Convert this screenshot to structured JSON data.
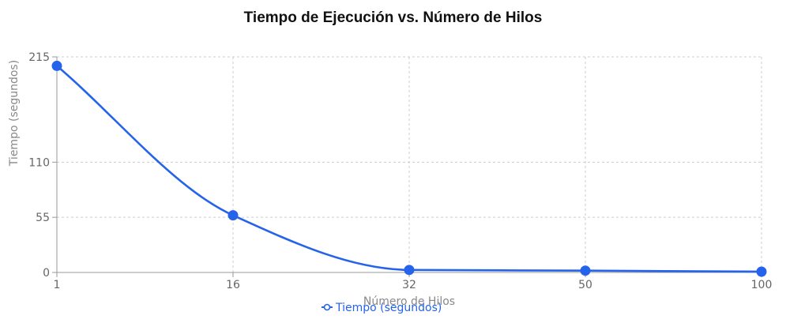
{
  "chart_data": {
    "type": "line",
    "title": "Tiempo de Ejecución vs. Número de Hilos",
    "xlabel": "Número de Hilos",
    "ylabel": "Tiempo (segundos)",
    "categories": [
      "1",
      "16",
      "32",
      "50",
      "100"
    ],
    "series": [
      {
        "name": "Tiempo (segundos)",
        "values": [
          206,
          57,
          2.5,
          1.8,
          0.8
        ],
        "color": "#2563eb"
      }
    ],
    "y_ticks": [
      0,
      55,
      110,
      215
    ],
    "ylim": [
      0,
      215
    ],
    "grid": true,
    "grid_style": "dashed",
    "legend_position": "bottom-center",
    "line_color": "#2563eb"
  }
}
